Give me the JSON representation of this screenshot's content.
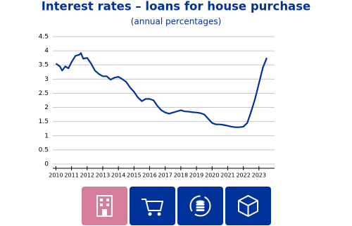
{
  "chart_data": {
    "type": "line",
    "title": "Interest rates – loans for house purchase",
    "subtitle": "(annual percentages)",
    "x": [
      2010.0,
      2010.25,
      2010.4,
      2010.6,
      2010.8,
      2011.0,
      2011.25,
      2011.5,
      2011.6,
      2011.75,
      2012.0,
      2012.25,
      2012.5,
      2012.75,
      2013.0,
      2013.25,
      2013.5,
      2013.75,
      2014.0,
      2014.25,
      2014.5,
      2014.75,
      2015.0,
      2015.25,
      2015.5,
      2015.75,
      2016.0,
      2016.25,
      2016.5,
      2016.75,
      2017.0,
      2017.25,
      2017.5,
      2017.75,
      2018.0,
      2018.25,
      2018.5,
      2018.75,
      2019.0,
      2019.25,
      2019.5,
      2019.75,
      2020.0,
      2020.25,
      2020.5,
      2020.75,
      2021.0,
      2021.25,
      2021.5,
      2021.75,
      2022.0,
      2022.25,
      2022.5,
      2022.75,
      2023.0,
      2023.25,
      2023.5
    ],
    "series": [
      {
        "color": "#003299",
        "values": [
          3.55,
          3.45,
          3.3,
          3.45,
          3.38,
          3.6,
          3.82,
          3.86,
          3.92,
          3.72,
          3.75,
          3.55,
          3.3,
          3.18,
          3.1,
          3.1,
          2.98,
          3.05,
          3.08,
          3.0,
          2.9,
          2.7,
          2.55,
          2.35,
          2.22,
          2.3,
          2.3,
          2.25,
          2.05,
          1.9,
          1.82,
          1.78,
          1.82,
          1.86,
          1.9,
          1.86,
          1.85,
          1.83,
          1.82,
          1.8,
          1.75,
          1.6,
          1.45,
          1.4,
          1.4,
          1.38,
          1.35,
          1.32,
          1.3,
          1.3,
          1.32,
          1.45,
          1.85,
          2.3,
          2.85,
          3.4,
          3.75
        ]
      }
    ],
    "xlim": [
      2009.8,
      2024.0
    ],
    "xticks": [
      2010,
      2011,
      2012,
      2013,
      2014,
      2015,
      2016,
      2017,
      2018,
      2019,
      2020,
      2021,
      2022,
      2023
    ],
    "ylim": [
      0,
      4.5
    ],
    "yticks": [
      0,
      0.5,
      1,
      1.5,
      2,
      2.5,
      3,
      3.5,
      4,
      4.5
    ],
    "grid": true
  }
}
